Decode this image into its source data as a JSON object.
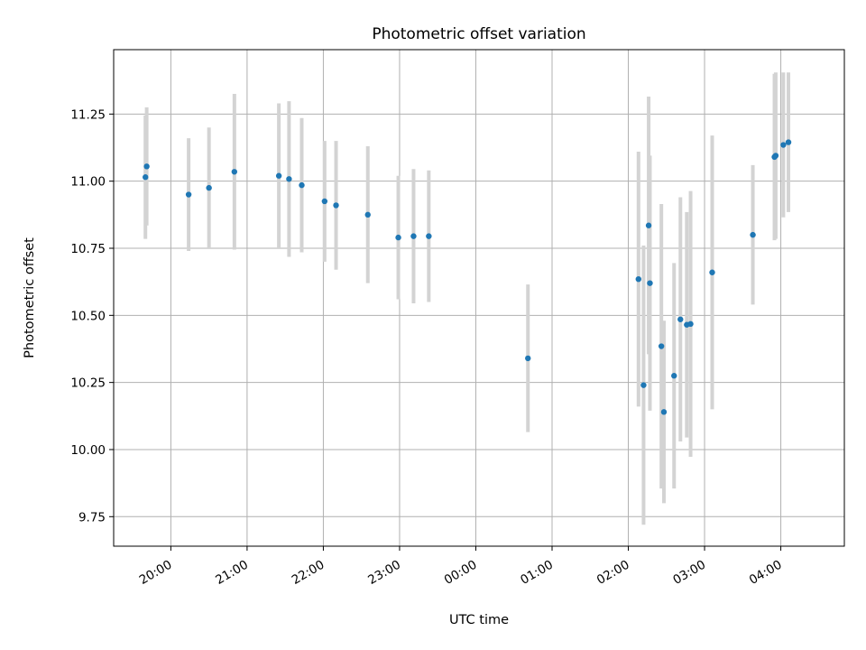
{
  "chart_data": {
    "type": "scatter",
    "title": "Photometric offset variation",
    "xlabel": "UTC time",
    "ylabel": "Photometric offset",
    "xlim": [
      "19:15",
      "04:50"
    ],
    "ylim": [
      9.64,
      11.49
    ],
    "x_ticks": [
      "20:00",
      "21:00",
      "22:00",
      "23:00",
      "00:00",
      "01:00",
      "02:00",
      "03:00",
      "04:00"
    ],
    "y_ticks": [
      "9.75",
      "10.00",
      "10.25",
      "10.50",
      "10.75",
      "11.00",
      "11.25"
    ],
    "grid": true,
    "point_color": "#1f77b4",
    "errorbar_color": "#d3d3d3",
    "points": [
      {
        "t": "19:40",
        "y": 11.015,
        "err": 0.23
      },
      {
        "t": "19:41",
        "y": 11.055,
        "err": 0.22
      },
      {
        "t": "20:14",
        "y": 10.95,
        "err": 0.21
      },
      {
        "t": "20:30",
        "y": 10.975,
        "err": 0.225
      },
      {
        "t": "20:50",
        "y": 11.035,
        "err": 0.29
      },
      {
        "t": "21:25",
        "y": 11.02,
        "err": 0.27
      },
      {
        "t": "21:33",
        "y": 11.008,
        "err": 0.29
      },
      {
        "t": "21:43",
        "y": 10.985,
        "err": 0.25
      },
      {
        "t": "22:01",
        "y": 10.925,
        "err": 0.225
      },
      {
        "t": "22:10",
        "y": 10.91,
        "err": 0.24
      },
      {
        "t": "22:35",
        "y": 10.875,
        "err": 0.255
      },
      {
        "t": "22:59",
        "y": 10.79,
        "err": 0.23
      },
      {
        "t": "23:11",
        "y": 10.795,
        "err": 0.25
      },
      {
        "t": "23:23",
        "y": 10.795,
        "err": 0.245
      },
      {
        "t": "00:41",
        "y": 10.34,
        "err": 0.275
      },
      {
        "t": "02:08",
        "y": 10.635,
        "err": 0.475
      },
      {
        "t": "02:12",
        "y": 10.24,
        "err": 0.52
      },
      {
        "t": "02:16",
        "y": 10.835,
        "err": 0.48
      },
      {
        "t": "02:17",
        "y": 10.62,
        "err": 0.475
      },
      {
        "t": "02:26",
        "y": 10.385,
        "err": 0.53
      },
      {
        "t": "02:28",
        "y": 10.14,
        "err": 0.34
      },
      {
        "t": "02:36",
        "y": 10.275,
        "err": 0.42
      },
      {
        "t": "02:41",
        "y": 10.485,
        "err": 0.455
      },
      {
        "t": "02:46",
        "y": 10.465,
        "err": 0.42
      },
      {
        "t": "02:49",
        "y": 10.468,
        "err": 0.495
      },
      {
        "t": "03:06",
        "y": 10.66,
        "err": 0.51
      },
      {
        "t": "03:38",
        "y": 10.8,
        "err": 0.26
      },
      {
        "t": "03:55",
        "y": 11.09,
        "err": 0.31
      },
      {
        "t": "03:56",
        "y": 11.095,
        "err": 0.31
      },
      {
        "t": "04:02",
        "y": 11.135,
        "err": 0.27
      },
      {
        "t": "04:06",
        "y": 11.145,
        "err": 0.26
      }
    ]
  }
}
